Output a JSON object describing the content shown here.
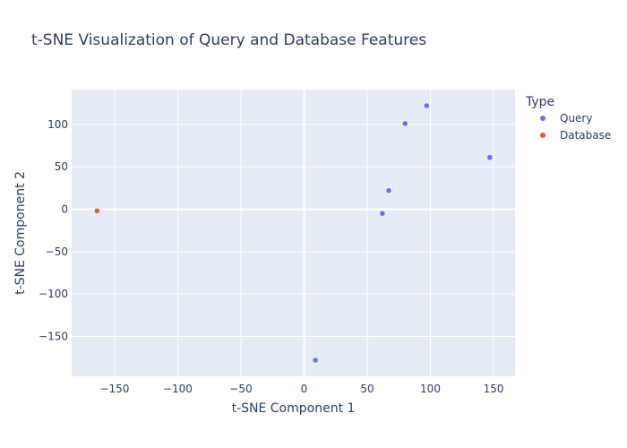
{
  "chart_data": {
    "type": "scatter",
    "title": "t-SNE Visualization of Query and Database Features",
    "xlabel": "t-SNE Component 1",
    "ylabel": "t-SNE Component 2",
    "xlim": [
      -184,
      167
    ],
    "ylim": [
      -197,
      141
    ],
    "xticks": [
      -150,
      -100,
      -50,
      0,
      50,
      100,
      150
    ],
    "yticks": [
      -150,
      -100,
      -50,
      0,
      50,
      100
    ],
    "xtick_labels": [
      "−150",
      "−100",
      "−50",
      "0",
      "50",
      "100",
      "150"
    ],
    "ytick_labels": [
      "−150",
      "−100",
      "−50",
      "0",
      "50",
      "100"
    ],
    "grid": true,
    "legend": {
      "title": "Type",
      "position": "right"
    },
    "series": [
      {
        "name": "Query",
        "color": "#636efa",
        "points": [
          {
            "x": 97,
            "y": 122
          },
          {
            "x": 80,
            "y": 101
          },
          {
            "x": 147,
            "y": 61
          },
          {
            "x": 67,
            "y": 22
          },
          {
            "x": 62,
            "y": -5
          },
          {
            "x": 9,
            "y": -178
          }
        ]
      },
      {
        "name": "Database",
        "color": "#ef553b",
        "points": [
          {
            "x": -164,
            "y": -2
          }
        ]
      }
    ]
  }
}
